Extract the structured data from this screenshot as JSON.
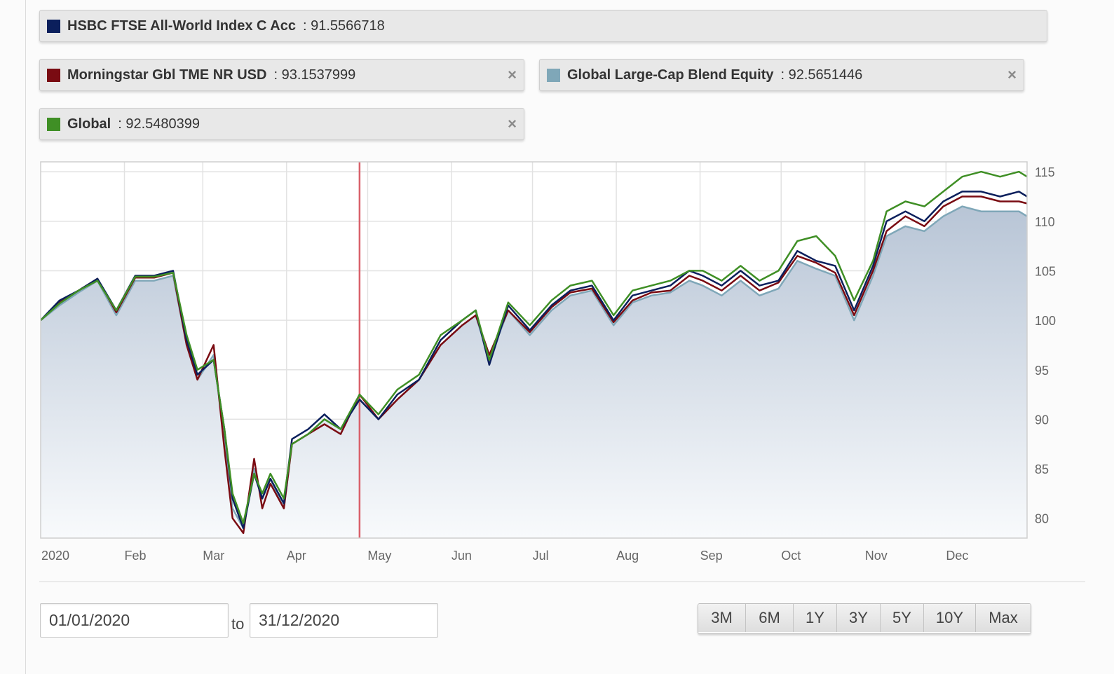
{
  "legend": [
    {
      "name": "HSBC FTSE All-World Index C Acc",
      "value": ": 91.5566718",
      "color": "#0b1f5c",
      "closable": false
    },
    {
      "name": "Morningstar Gbl TME NR USD",
      "value": ": 93.1537999",
      "color": "#7a0b12",
      "closable": true
    },
    {
      "name": "Global Large-Cap Blend Equity",
      "value": ": 92.5651446",
      "color": "#7fa7b8",
      "closable": true
    },
    {
      "name": "Global",
      "value": ": 92.5480399",
      "color": "#3f8f25",
      "closable": true
    }
  ],
  "close_glyph": "×",
  "chart_data": {
    "type": "line",
    "title": "",
    "xlabel": "",
    "ylabel": "",
    "x_tick_labels": [
      "2020",
      "Feb",
      "Mar",
      "Apr",
      "May",
      "Jun",
      "Jul",
      "Aug",
      "Sep",
      "Oct",
      "Nov",
      "Dec"
    ],
    "y_ticks": [
      80,
      85,
      90,
      95,
      100,
      105,
      110,
      115
    ],
    "ylim": [
      78,
      116
    ],
    "x_range": [
      "2020-01-01",
      "2020-12-31"
    ],
    "grid": true,
    "y_axis_side": "right",
    "marker_date": "2020-04-28",
    "marker_color": "#d9606a",
    "area_fill": {
      "top": "#b8c5d6",
      "bottom": "#f8fafc"
    },
    "x": [
      "2020-01-01",
      "2020-01-08",
      "2020-01-15",
      "2020-01-22",
      "2020-01-29",
      "2020-02-05",
      "2020-02-12",
      "2020-02-19",
      "2020-02-24",
      "2020-02-28",
      "2020-03-05",
      "2020-03-09",
      "2020-03-12",
      "2020-03-16",
      "2020-03-20",
      "2020-03-23",
      "2020-03-26",
      "2020-03-31",
      "2020-04-03",
      "2020-04-09",
      "2020-04-15",
      "2020-04-21",
      "2020-04-28",
      "2020-05-05",
      "2020-05-12",
      "2020-05-20",
      "2020-05-28",
      "2020-06-05",
      "2020-06-10",
      "2020-06-15",
      "2020-06-22",
      "2020-06-30",
      "2020-07-08",
      "2020-07-15",
      "2020-07-23",
      "2020-07-31",
      "2020-08-07",
      "2020-08-14",
      "2020-08-21",
      "2020-08-28",
      "2020-09-02",
      "2020-09-09",
      "2020-09-16",
      "2020-09-23",
      "2020-09-30",
      "2020-10-07",
      "2020-10-14",
      "2020-10-21",
      "2020-10-28",
      "2020-11-04",
      "2020-11-09",
      "2020-11-16",
      "2020-11-23",
      "2020-11-30",
      "2020-12-07",
      "2020-12-14",
      "2020-12-21",
      "2020-12-28",
      "2020-12-31"
    ],
    "series": [
      {
        "name": "HSBC FTSE All-World Index C Acc",
        "color": "#0b1f5c",
        "values": [
          100,
          102,
          103,
          104.2,
          101,
          104.5,
          104.5,
          105,
          98,
          94.5,
          96,
          89,
          82,
          79,
          84.5,
          82,
          84,
          81.5,
          88,
          89,
          90.5,
          89,
          92,
          90,
          92.5,
          94,
          98,
          100,
          101,
          95.5,
          101.5,
          99,
          101.5,
          103,
          103.5,
          100,
          102.5,
          103,
          103.5,
          105,
          104.5,
          103.5,
          105,
          103.5,
          104,
          107,
          106,
          105.5,
          101,
          105.5,
          110,
          111,
          110,
          112,
          113,
          113,
          112.5,
          113,
          112.5
        ]
      },
      {
        "name": "Morningstar Gbl TME NR USD",
        "color": "#7a0b12",
        "values": [
          100,
          101.8,
          103,
          104.2,
          100.8,
          104.3,
          104.3,
          104.8,
          97.5,
          94,
          97.5,
          87,
          80,
          78.5,
          86,
          81,
          83.5,
          81,
          87.5,
          88.5,
          89.5,
          88.5,
          92.5,
          90,
          92,
          94,
          97.5,
          99.5,
          100.5,
          96.5,
          101,
          98.8,
          101.3,
          102.8,
          103.2,
          99.8,
          102,
          102.8,
          103,
          104.5,
          104,
          103,
          104.5,
          103,
          103.8,
          106.5,
          105.8,
          104.8,
          100.5,
          105,
          109,
          110.5,
          109.5,
          111.5,
          112.5,
          112.5,
          112,
          112,
          111.8
        ]
      },
      {
        "name": "Global Large-Cap Blend Equity",
        "color": "#7fa7b8",
        "values": [
          100,
          101.5,
          102.8,
          104,
          100.5,
          104,
          104,
          104.5,
          97.5,
          94,
          96.5,
          88,
          81,
          79,
          85,
          82,
          84,
          81,
          87.5,
          88.5,
          90,
          89,
          92,
          90,
          92,
          94,
          97.5,
          99.5,
          100.5,
          96,
          101,
          98.5,
          101,
          102.5,
          103,
          99.5,
          101.8,
          102.5,
          102.8,
          104,
          103.5,
          102.5,
          104,
          102.5,
          103.2,
          106,
          105.2,
          104.5,
          100,
          104.5,
          108.5,
          109.5,
          109,
          110.5,
          111.5,
          111,
          111,
          111,
          110.5
        ]
      },
      {
        "name": "Global",
        "color": "#3f8f25",
        "values": [
          100,
          101.7,
          103,
          104,
          101,
          104.4,
          104.4,
          104.8,
          98.5,
          95,
          96,
          89,
          82.5,
          79.5,
          84.5,
          82.5,
          84.5,
          82,
          87.5,
          88.5,
          90,
          89,
          92.5,
          90.5,
          93,
          94.5,
          98.5,
          100,
          101,
          96,
          101.8,
          99.5,
          102,
          103.5,
          104,
          100.5,
          103,
          103.5,
          104,
          105,
          105,
          104,
          105.5,
          104,
          105,
          108,
          108.5,
          106.5,
          102,
          106,
          111,
          112,
          111.5,
          113,
          114.5,
          115,
          114.5,
          115,
          114.5
        ]
      }
    ]
  },
  "date_from": "01/01/2020",
  "to_label": "to",
  "date_to": "31/12/2020",
  "range_buttons": [
    "3M",
    "6M",
    "1Y",
    "3Y",
    "5Y",
    "10Y",
    "Max"
  ]
}
